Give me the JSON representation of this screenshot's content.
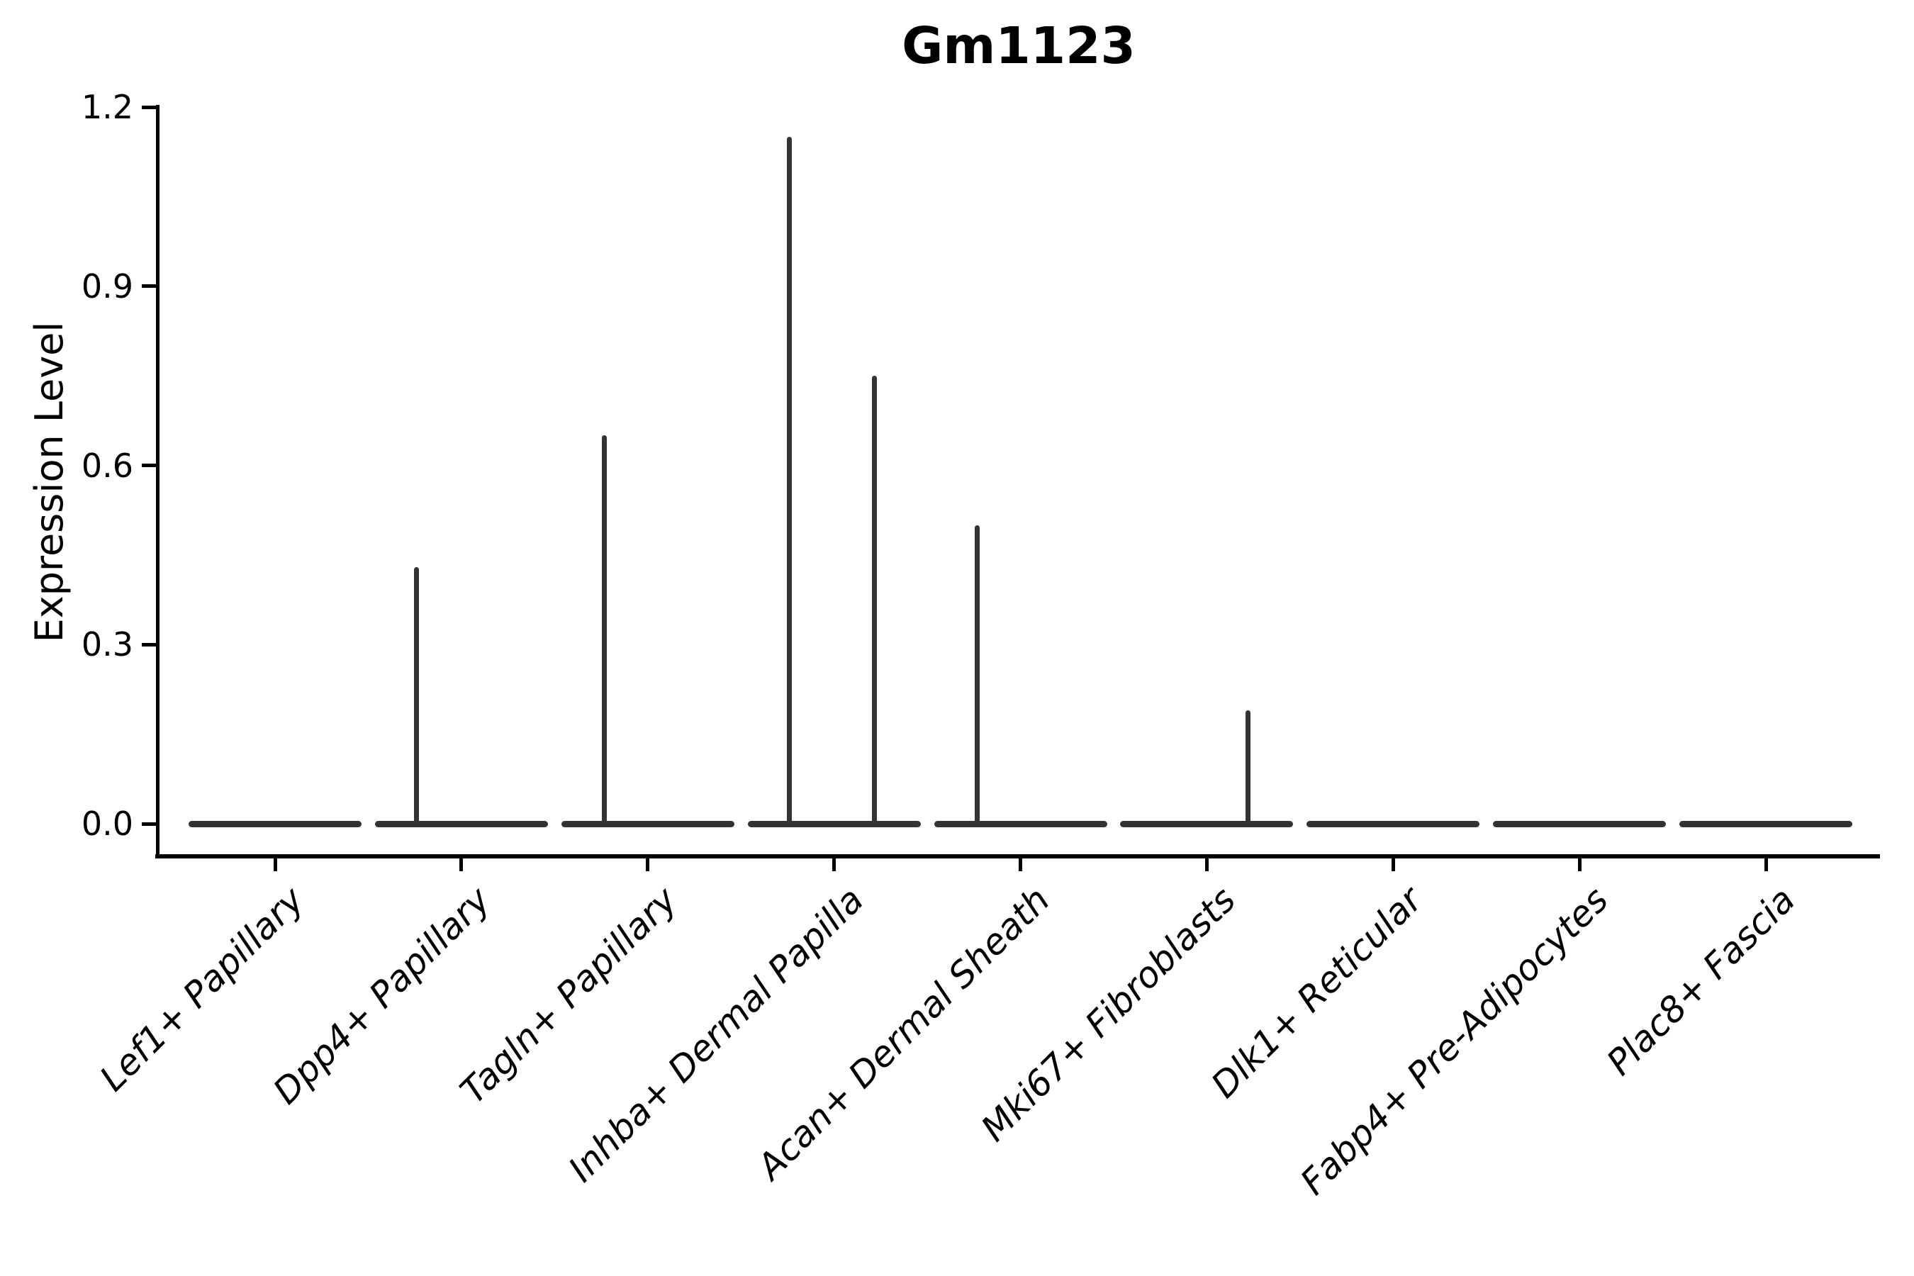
{
  "chart_data": {
    "type": "violin",
    "title": "Gm1123",
    "ylabel": "Expression Level",
    "xlabel": "",
    "ylim": [
      0,
      1.2
    ],
    "yticks": [
      {
        "value": 0.0,
        "label": "0.0"
      },
      {
        "value": 0.3,
        "label": "0.3"
      },
      {
        "value": 0.6,
        "label": "0.6"
      },
      {
        "value": 0.9,
        "label": "0.9"
      },
      {
        "value": 1.2,
        "label": "1.2"
      }
    ],
    "categories": [
      "Lef1+ Papillary",
      "Dpp4+ Papillary",
      "Tagln+ Papillary",
      "Inhba+ Dermal Papilla",
      "Acan+ Dermal Sheath",
      "Mki67+ Fibroblasts",
      "Dlk1+ Reticular",
      "Fabp4+ Pre-Adipocytes",
      "Plac8+ Fascia"
    ],
    "violins": [
      {
        "category": "Lef1+ Papillary",
        "bulk_value": 0.0,
        "spikes": []
      },
      {
        "category": "Dpp4+ Papillary",
        "bulk_value": 0.0,
        "spikes": [
          {
            "side": "left",
            "offset": -63,
            "max": 0.43
          }
        ]
      },
      {
        "category": "Tagln+ Papillary",
        "bulk_value": 0.0,
        "spikes": [
          {
            "side": "left",
            "offset": -61,
            "max": 0.65
          }
        ]
      },
      {
        "category": "Inhba+ Dermal Papilla",
        "bulk_value": 0.0,
        "spikes": [
          {
            "side": "left",
            "offset": -63,
            "max": 1.15
          },
          {
            "side": "right",
            "offset": 57,
            "max": 0.75
          }
        ]
      },
      {
        "category": "Acan+ Dermal Sheath",
        "bulk_value": 0.0,
        "spikes": [
          {
            "side": "left",
            "offset": -61,
            "max": 0.5
          }
        ]
      },
      {
        "category": "Mki67+ Fibroblasts",
        "bulk_value": 0.0,
        "spikes": [
          {
            "side": "right",
            "offset": 58,
            "max": 0.19
          }
        ]
      },
      {
        "category": "Dlk1+ Reticular",
        "bulk_value": 0.0,
        "spikes": []
      },
      {
        "category": "Fabp4+ Pre-Adipocytes",
        "bulk_value": 0.0,
        "spikes": []
      },
      {
        "category": "Plac8+ Fascia",
        "bulk_value": 0.0,
        "spikes": []
      }
    ],
    "legend": null,
    "grid": false,
    "colors": {
      "violin_line": "#333333",
      "axis": "#000000",
      "text": "#000000",
      "background": "#ffffff"
    }
  }
}
